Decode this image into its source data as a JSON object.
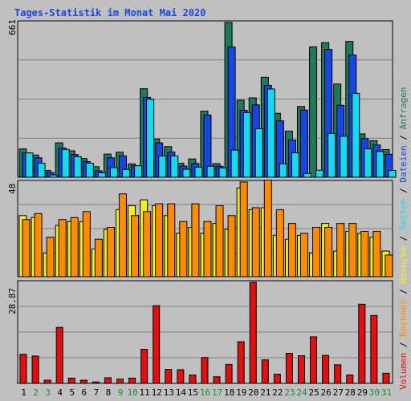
{
  "chart_data": [
    {
      "type": "bar",
      "title": "Tages-Statistik im Monat Mai 2020",
      "panel": "top",
      "ymax_label": "661",
      "ylim": [
        0,
        661
      ],
      "categories": [
        "1",
        "2",
        "3",
        "4",
        "5",
        "6",
        "7",
        "8",
        "9",
        "10",
        "11",
        "12",
        "13",
        "14",
        "15",
        "16",
        "17",
        "18",
        "19",
        "20",
        "21",
        "22",
        "23",
        "24",
        "25",
        "26",
        "27",
        "28",
        "29",
        "30",
        "31"
      ],
      "series": [
        {
          "name": "Anfragen",
          "color": "#1f7a5c",
          "values": [
            121,
            95,
            29,
            147,
            113,
            80,
            45,
            99,
            107,
            57,
            378,
            163,
            131,
            60,
            78,
            282,
            58,
            661,
            329,
            339,
            427,
            273,
            197,
            302,
            557,
            575,
            398,
            580,
            185,
            156,
            118
          ]
        },
        {
          "name": "Dateien",
          "color": "#1846e0",
          "values": [
            104,
            83,
            20,
            125,
            97,
            67,
            27,
            83,
            91,
            49,
            341,
            147,
            108,
            48,
            59,
            266,
            47,
            556,
            286,
            309,
            392,
            241,
            159,
            287,
            0,
            546,
            307,
            522,
            165,
            138,
            98
          ]
        },
        {
          "name": "Seiten",
          "color": "#18d8f0",
          "values": [
            104,
            60,
            10,
            119,
            88,
            60,
            19,
            41,
            33,
            49,
            333,
            91,
            91,
            34,
            43,
            47,
            40,
            116,
            276,
            207,
            377,
            57,
            104,
            16,
            30,
            187,
            175,
            358,
            121,
            110,
            29
          ]
        }
      ]
    },
    {
      "type": "bar",
      "panel": "middle",
      "ymax_label": "48",
      "ylim": [
        0,
        48
      ],
      "series": [
        {
          "name": "Besuche",
          "color": "#f0f020",
          "values": [
            31,
            30,
            12,
            26,
            28,
            28,
            14,
            24,
            34,
            36,
            39,
            36,
            31,
            22,
            25,
            22,
            27,
            24,
            45,
            34,
            35,
            21,
            19,
            21,
            12,
            27,
            13,
            23,
            22,
            20,
            13
          ]
        },
        {
          "name": "Rechner",
          "color": "#ff8c00",
          "values": [
            29,
            32,
            20,
            29,
            30,
            33,
            19,
            25,
            42,
            31,
            33,
            37,
            37,
            28,
            37,
            28,
            36,
            31,
            48,
            35,
            49,
            34,
            27,
            22,
            25,
            25,
            27,
            27,
            23,
            23,
            11
          ]
        }
      ]
    },
    {
      "type": "bar",
      "panel": "bottom",
      "ymax_label": "28.87",
      "ylim": [
        0,
        28.87
      ],
      "series": [
        {
          "name": "Volumen",
          "color": "#e01010",
          "values": [
            8.3,
            7.8,
            0.9,
            16.0,
            1.5,
            0.9,
            0.4,
            1.6,
            1.2,
            1.5,
            9.7,
            22.2,
            4.0,
            3.9,
            2.4,
            7.4,
            1.9,
            5.4,
            11.9,
            28.87,
            6.7,
            2.6,
            8.6,
            7.9,
            13.3,
            8.0,
            5.3,
            2.4,
            22.6,
            19.4,
            2.9
          ]
        }
      ]
    }
  ],
  "legend": [
    {
      "text": "Volumen",
      "color": "#e01010"
    },
    {
      "text": " / ",
      "color": "#000000"
    },
    {
      "text": "Rechner",
      "color": "#ff8c00"
    },
    {
      "text": " / ",
      "color": "#000000"
    },
    {
      "text": "Besuche",
      "color": "#f0f020"
    },
    {
      "text": " / ",
      "color": "#000000"
    },
    {
      "text": "Seiten",
      "color": "#18d8f0"
    },
    {
      "text": " / ",
      "color": "#000000"
    },
    {
      "text": "Dateien",
      "color": "#1846e0"
    },
    {
      "text": " / ",
      "color": "#000000"
    },
    {
      "text": "Anfragen",
      "color": "#1f7a5c"
    }
  ],
  "weekend_days": [
    "2",
    "3",
    "9",
    "10",
    "16",
    "17",
    "23",
    "24",
    "30",
    "31"
  ],
  "colors": {
    "weekend_label": "#1f8a3c",
    "weekday_label": "#000000",
    "title": "#1846e0"
  }
}
